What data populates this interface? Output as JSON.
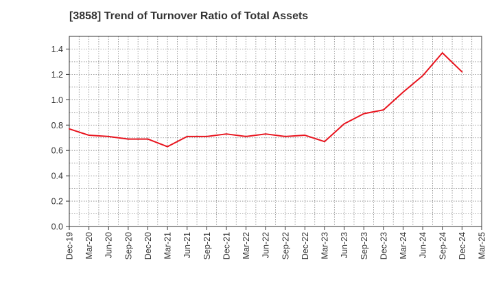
{
  "chart_data": {
    "type": "line",
    "title": "[3858]  Trend of Turnover Ratio of Total Assets",
    "xlabel": "",
    "ylabel": "",
    "ylim": [
      0,
      1.5
    ],
    "yticks": [
      "0.0",
      "0.2",
      "0.4",
      "0.6",
      "0.8",
      "1.0",
      "1.2",
      "1.4"
    ],
    "xtick_labels": [
      "Dec-19",
      "Mar-20",
      "Jun-20",
      "Sep-20",
      "Dec-20",
      "Mar-21",
      "Jun-21",
      "Sep-21",
      "Dec-21",
      "Mar-22",
      "Jun-22",
      "Sep-22",
      "Dec-22",
      "Mar-23",
      "Jun-23",
      "Sep-23",
      "Dec-23",
      "Mar-24",
      "Jun-24",
      "Sep-24",
      "Dec-24",
      "Mar-25"
    ],
    "grid": true,
    "line_color": "#e8141e",
    "series": [
      {
        "name": "",
        "x": [
          "Dec-19",
          "Mar-20",
          "Jun-20",
          "Sep-20",
          "Dec-20",
          "Mar-21",
          "Jun-21",
          "Sep-21",
          "Dec-21",
          "Mar-22",
          "Jun-22",
          "Sep-22",
          "Dec-22",
          "Mar-23",
          "Jun-23",
          "Sep-23",
          "Dec-23",
          "Mar-24",
          "Jun-24",
          "Sep-24",
          "Dec-24"
        ],
        "values": [
          0.77,
          0.72,
          0.71,
          0.69,
          0.69,
          0.63,
          0.71,
          0.71,
          0.73,
          0.71,
          0.73,
          0.71,
          0.72,
          0.67,
          0.81,
          0.89,
          0.92,
          1.06,
          1.19,
          1.37,
          1.22
        ]
      }
    ]
  }
}
